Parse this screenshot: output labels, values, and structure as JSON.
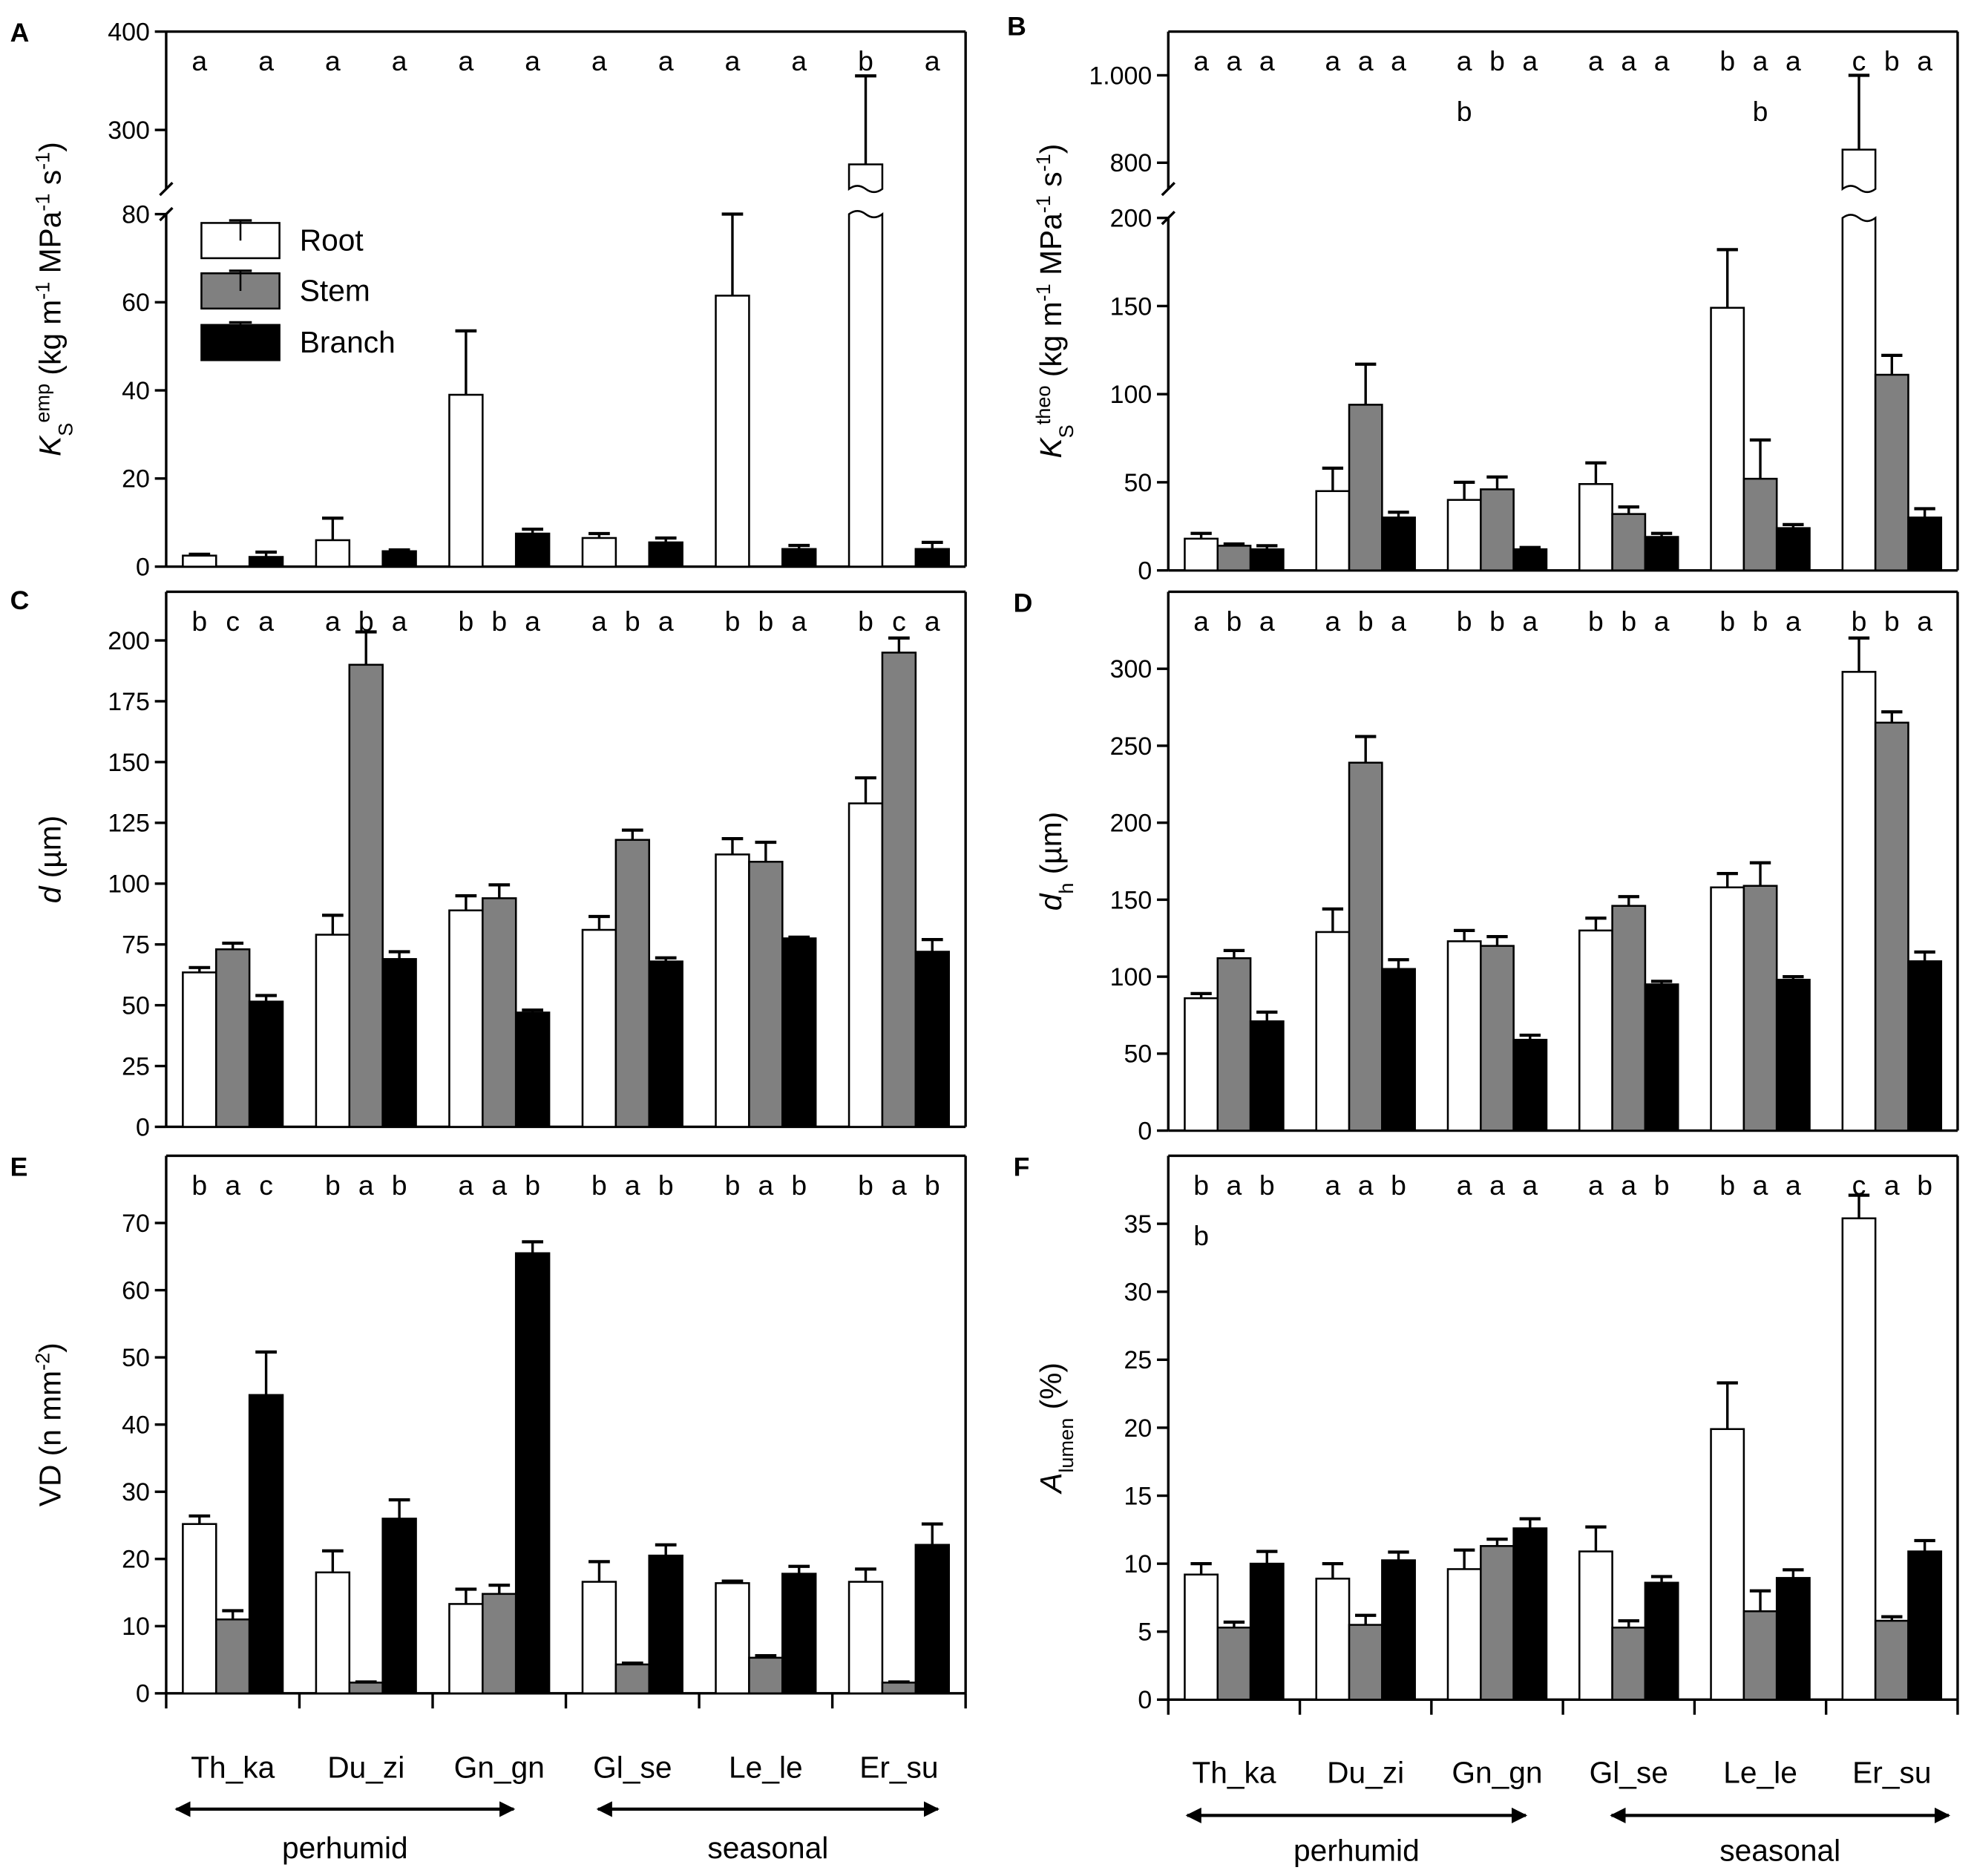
{
  "legend": {
    "items": [
      {
        "label": "Root",
        "color": "#ffffff"
      },
      {
        "label": "Stem",
        "color": "#808080"
      },
      {
        "label": "Branch",
        "color": "#000000"
      }
    ]
  },
  "x_axis": {
    "categories": [
      "Th_ka",
      "Du_zi",
      "Gn_gn",
      "Gl_se",
      "Le_le",
      "Er_su"
    ],
    "climate_groups": [
      {
        "label": "perhumid",
        "categories": [
          "Th_ka",
          "Du_zi",
          "Gn_gn"
        ]
      },
      {
        "label": "seasonal",
        "categories": [
          "Gl_se",
          "Le_le",
          "Er_su"
        ]
      }
    ]
  },
  "chart_data": [
    {
      "panel": "A",
      "type": "bar",
      "ylabel_parts": [
        {
          "t": "K",
          "s": "i"
        },
        {
          "t": "S",
          "s": "sub"
        },
        {
          "t": "emp",
          "s": "sup"
        },
        {
          "t": " (kg m"
        },
        {
          "t": "-1",
          "s": "sup"
        },
        {
          "t": " MPa"
        },
        {
          "t": "-1",
          "s": "sup"
        },
        {
          "t": " s"
        },
        {
          "t": "-1",
          "s": "sup"
        },
        {
          "t": ")"
        }
      ],
      "y_segments": [
        [
          0,
          80
        ],
        [
          240,
          400
        ]
      ],
      "yticks": [
        {
          "v": 0,
          "label": "0"
        },
        {
          "v": 20,
          "label": "20"
        },
        {
          "v": 40,
          "label": "40"
        },
        {
          "v": 60,
          "label": "60"
        },
        {
          "v": 80,
          "label": "80"
        },
        {
          "v": 300,
          "label": "300"
        },
        {
          "v": 400,
          "label": "400"
        }
      ],
      "series": [
        {
          "name": "Root",
          "values": [
            2.5,
            6,
            39,
            6.5,
            61.5,
            265
          ],
          "se": [
            0.3,
            5,
            14.5,
            1,
            18.5,
            90
          ]
        },
        {
          "name": "Stem",
          "values": null,
          "se": null
        },
        {
          "name": "Branch",
          "values": [
            2.2,
            3.5,
            7.5,
            5.5,
            4,
            4
          ],
          "se": [
            1.1,
            0.3,
            1,
            1,
            0.8,
            1.5
          ]
        }
      ],
      "letters": [
        [
          [
            "a",
            null,
            "a"
          ],
          [
            "a",
            null,
            "a"
          ],
          [
            "a",
            null,
            "a"
          ],
          [
            "a",
            null,
            "a"
          ],
          [
            "a",
            null,
            "a"
          ],
          [
            "b",
            null,
            "a"
          ]
        ]
      ]
    },
    {
      "panel": "B",
      "type": "bar",
      "ylabel_parts": [
        {
          "t": "K",
          "s": "i"
        },
        {
          "t": "S",
          "s": "sub"
        },
        {
          "t": "theo",
          "s": "sup"
        },
        {
          "t": " (kg m"
        },
        {
          "t": "-1",
          "s": "sup"
        },
        {
          "t": " MPa"
        },
        {
          "t": "-1",
          "s": "sup"
        },
        {
          "t": " s"
        },
        {
          "t": "-1",
          "s": "sup"
        },
        {
          "t": ")"
        }
      ],
      "y_segments": [
        [
          0,
          200
        ],
        [
          740,
          1100
        ]
      ],
      "yticks": [
        {
          "v": 0,
          "label": "0"
        },
        {
          "v": 50,
          "label": "50"
        },
        {
          "v": 100,
          "label": "100"
        },
        {
          "v": 150,
          "label": "150"
        },
        {
          "v": 200,
          "label": "200"
        },
        {
          "v": 800,
          "label": "800"
        },
        {
          "v": 1000,
          "label": "1.000"
        }
      ],
      "series": [
        {
          "name": "Root",
          "values": [
            18,
            45,
            40,
            49,
            149,
            830
          ],
          "se": [
            3,
            13,
            10,
            12,
            33,
            170
          ]
        },
        {
          "name": "Stem",
          "values": [
            14,
            94,
            46,
            32,
            52,
            111
          ],
          "se": [
            1,
            23,
            7,
            4,
            22,
            11
          ]
        },
        {
          "name": "Branch",
          "values": [
            12,
            30,
            12,
            19,
            24,
            30
          ],
          "se": [
            2,
            3,
            1,
            2,
            2,
            5
          ]
        }
      ],
      "letters": [
        [
          [
            "a",
            "a",
            "a"
          ],
          [
            "a",
            "a",
            "a"
          ],
          [
            "a",
            "b",
            "a"
          ],
          [
            "a",
            "a",
            "a"
          ],
          [
            "b",
            "a",
            "a"
          ],
          [
            "c",
            "b",
            "a"
          ]
        ],
        [
          [
            null,
            null,
            null
          ],
          [
            null,
            null,
            null
          ],
          [
            "b",
            null,
            null
          ],
          [
            null,
            null,
            null
          ],
          [
            null,
            "b",
            null
          ],
          [
            null,
            null,
            null
          ]
        ]
      ]
    },
    {
      "panel": "C",
      "type": "bar",
      "ylabel_parts": [
        {
          "t": "d",
          "s": "i"
        },
        {
          "t": " (µm)"
        }
      ],
      "y_segments": [
        [
          0,
          220
        ]
      ],
      "yticks": [
        {
          "v": 0,
          "label": "0"
        },
        {
          "v": 25,
          "label": "25"
        },
        {
          "v": 50,
          "label": "50"
        },
        {
          "v": 75,
          "label": "75"
        },
        {
          "v": 100,
          "label": "100"
        },
        {
          "v": 125,
          "label": "125"
        },
        {
          "v": 150,
          "label": "150"
        },
        {
          "v": 175,
          "label": "175"
        },
        {
          "v": 200,
          "label": "200"
        }
      ],
      "series": [
        {
          "name": "Root",
          "values": [
            63.5,
            79,
            89,
            81,
            112,
            133
          ],
          "se": [
            2,
            8,
            6,
            5.5,
            6.5,
            10.5
          ]
        },
        {
          "name": "Stem",
          "values": [
            73,
            190,
            94,
            118,
            109,
            195
          ],
          "se": [
            2.5,
            13.5,
            5.5,
            4,
            8,
            6
          ]
        },
        {
          "name": "Branch",
          "values": [
            51.5,
            69,
            47,
            68,
            77.5,
            72
          ],
          "se": [
            2.5,
            3,
            1,
            1.5,
            0.5,
            5
          ]
        }
      ],
      "letters": [
        [
          [
            "b",
            "c",
            "a"
          ],
          [
            "a",
            "b",
            "a"
          ],
          [
            "b",
            "b",
            "a"
          ],
          [
            "a",
            "b",
            "a"
          ],
          [
            "b",
            "b",
            "a"
          ],
          [
            "b",
            "c",
            "a"
          ]
        ]
      ]
    },
    {
      "panel": "D",
      "type": "bar",
      "ylabel_parts": [
        {
          "t": "d",
          "s": "i"
        },
        {
          "t": "h",
          "s": "sub"
        },
        {
          "t": " (µm)"
        }
      ],
      "y_segments": [
        [
          0,
          350
        ]
      ],
      "yticks": [
        {
          "v": 0,
          "label": "0"
        },
        {
          "v": 50,
          "label": "50"
        },
        {
          "v": 100,
          "label": "100"
        },
        {
          "v": 150,
          "label": "150"
        },
        {
          "v": 200,
          "label": "200"
        },
        {
          "v": 250,
          "label": "250"
        },
        {
          "v": 300,
          "label": "300"
        }
      ],
      "series": [
        {
          "name": "Root",
          "values": [
            86,
            129,
            123,
            130,
            158,
            298
          ],
          "se": [
            3,
            15,
            7,
            8,
            9,
            22
          ]
        },
        {
          "name": "Stem",
          "values": [
            112,
            239,
            120,
            146,
            159,
            265
          ],
          "se": [
            5,
            17,
            6,
            6,
            15,
            7
          ]
        },
        {
          "name": "Branch",
          "values": [
            71,
            105,
            59,
            95,
            98,
            110
          ],
          "se": [
            6,
            6,
            3,
            2,
            2,
            6
          ]
        }
      ],
      "letters": [
        [
          [
            "a",
            "b",
            "a"
          ],
          [
            "a",
            "b",
            "a"
          ],
          [
            "b",
            "b",
            "a"
          ],
          [
            "b",
            "b",
            "a"
          ],
          [
            "b",
            "b",
            "a"
          ],
          [
            "b",
            "b",
            "a"
          ]
        ]
      ]
    },
    {
      "panel": "E",
      "type": "bar",
      "ylabel_parts": [
        {
          "t": "VD (n mm"
        },
        {
          "t": "-2",
          "s": "sup"
        },
        {
          "t": ")"
        }
      ],
      "y_segments": [
        [
          0,
          80
        ]
      ],
      "yticks": [
        {
          "v": 0,
          "label": "0"
        },
        {
          "v": 10,
          "label": "10"
        },
        {
          "v": 20,
          "label": "20"
        },
        {
          "v": 30,
          "label": "30"
        },
        {
          "v": 40,
          "label": "40"
        },
        {
          "v": 50,
          "label": "50"
        },
        {
          "v": 60,
          "label": "60"
        },
        {
          "v": 70,
          "label": "70"
        }
      ],
      "series": [
        {
          "name": "Root",
          "values": [
            25.2,
            18,
            13.3,
            16.6,
            16.4,
            16.6
          ],
          "se": [
            1.2,
            3.2,
            2.2,
            3,
            0.3,
            1.9
          ]
        },
        {
          "name": "Stem",
          "values": [
            11,
            1.6,
            14.8,
            4.3,
            5.3,
            1.6
          ],
          "se": [
            1.3,
            0.1,
            1.3,
            0.2,
            0.3,
            0.1
          ]
        },
        {
          "name": "Branch",
          "values": [
            44.4,
            26,
            65.5,
            20.5,
            17.8,
            22.1
          ],
          "se": [
            6.4,
            2.8,
            1.7,
            1.6,
            1.1,
            3.1
          ]
        }
      ],
      "letters": [
        [
          [
            "b",
            "a",
            "c"
          ],
          [
            "b",
            "a",
            "b"
          ],
          [
            "a",
            "a",
            "b"
          ],
          [
            "b",
            "a",
            "b"
          ],
          [
            "b",
            "a",
            "b"
          ],
          [
            "b",
            "a",
            "b"
          ]
        ]
      ]
    },
    {
      "panel": "F",
      "type": "bar",
      "ylabel_parts": [
        {
          "t": "A",
          "s": "i"
        },
        {
          "t": "lumen",
          "s": "sub"
        },
        {
          "t": " (%)"
        }
      ],
      "y_segments": [
        [
          0,
          40
        ]
      ],
      "yticks": [
        {
          "v": 0,
          "label": "0"
        },
        {
          "v": 5,
          "label": "5"
        },
        {
          "v": 10,
          "label": "10"
        },
        {
          "v": 15,
          "label": "15"
        },
        {
          "v": 20,
          "label": "20"
        },
        {
          "v": 25,
          "label": "25"
        },
        {
          "v": 30,
          "label": "30"
        },
        {
          "v": 35,
          "label": "35"
        }
      ],
      "series": [
        {
          "name": "Root",
          "values": [
            9.2,
            8.9,
            9.6,
            10.9,
            19.9,
            35.4
          ],
          "se": [
            0.8,
            1.1,
            1.4,
            1.8,
            3.4,
            1.7
          ]
        },
        {
          "name": "Stem",
          "values": [
            5.3,
            5.5,
            11.3,
            5.3,
            6.5,
            5.8
          ],
          "se": [
            0.4,
            0.7,
            0.5,
            0.5,
            1.5,
            0.3
          ]
        },
        {
          "name": "Branch",
          "values": [
            10,
            10.25,
            12.6,
            8.6,
            8.95,
            10.9
          ],
          "se": [
            0.9,
            0.6,
            0.7,
            0.45,
            0.6,
            0.8
          ]
        }
      ],
      "letters": [
        [
          [
            "b",
            "a",
            "b"
          ],
          [
            "a",
            "a",
            "b"
          ],
          [
            "a",
            "a",
            "a"
          ],
          [
            "a",
            "a",
            "b"
          ],
          [
            "b",
            "a",
            "a"
          ],
          [
            "c",
            "a",
            "b"
          ]
        ],
        [
          [
            "b",
            null,
            null
          ],
          [
            null,
            null,
            null
          ],
          [
            null,
            null,
            null
          ],
          [
            null,
            null,
            null
          ],
          [
            null,
            null,
            null
          ],
          [
            null,
            null,
            null
          ]
        ]
      ]
    }
  ]
}
